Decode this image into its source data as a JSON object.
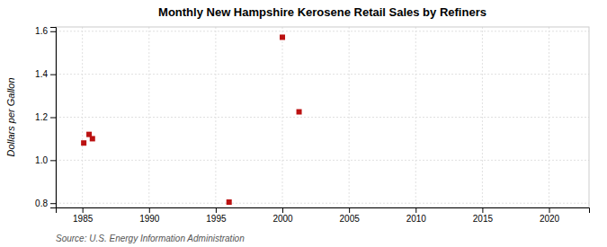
{
  "chart_data": {
    "type": "scatter",
    "title": "Monthly New Hampshire Kerosene Retail Sales by Refiners",
    "y_label": "Dollars per Gallon",
    "source": "Source: U.S. Energy Information Administration",
    "x": [
      1985.1,
      1985.5,
      1985.75,
      1996.0,
      2000.0,
      2001.25
    ],
    "values": [
      1.08,
      1.12,
      1.1,
      0.805,
      1.572,
      1.225
    ],
    "color": "#bb1111",
    "marker": "square",
    "xlim": [
      1983,
      2023
    ],
    "ylim": [
      0.78,
      1.62
    ],
    "xticks": [
      1985,
      1990,
      1995,
      2000,
      2005,
      2010,
      2015,
      2020
    ],
    "yticks": [
      0.8,
      {
        "value": 1.0,
        "label": "1.0"
      },
      1.2,
      1.4,
      1.6
    ],
    "grid": true
  }
}
